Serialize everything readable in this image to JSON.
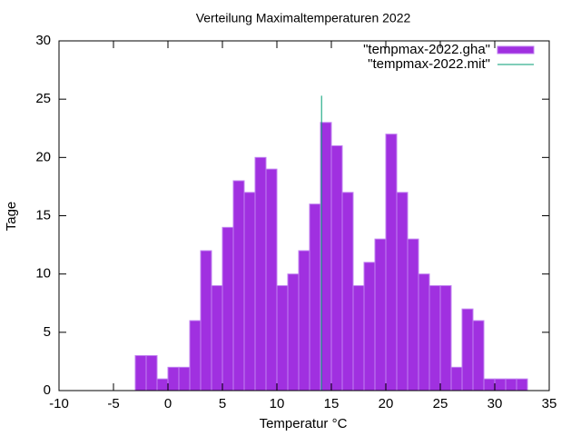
{
  "chart_data": {
    "type": "histogram",
    "title": "Verteilung Maximaltemperaturen 2022",
    "xlabel": "Temperatur °C",
    "ylabel": "Tage",
    "bins": [
      -3,
      -2,
      -1,
      0,
      1,
      2,
      3,
      4,
      5,
      6,
      7,
      8,
      9,
      10,
      11,
      12,
      13,
      14,
      15,
      16,
      17,
      18,
      19,
      20,
      21,
      22,
      23,
      24,
      25,
      26,
      27,
      28,
      29,
      30,
      31,
      32,
      33
    ],
    "series": [
      {
        "name": "\"tempmax-2022.gha\"",
        "color": "#a030e0",
        "values": [
          3,
          3,
          1,
          2,
          2,
          6,
          12,
          9,
          14,
          18,
          17,
          20,
          19,
          9,
          10,
          12,
          16,
          23,
          21,
          17,
          9,
          11,
          13,
          22,
          17,
          13,
          10,
          9,
          9,
          2,
          7,
          6,
          1,
          1,
          1,
          1
        ]
      },
      {
        "name": "\"tempmax-2022.mit\"",
        "color": "#009e73",
        "type": "line",
        "x": [
          14.1,
          14.1
        ],
        "values": [
          0,
          25.3
        ]
      }
    ],
    "xlim": [
      -10,
      35
    ],
    "xticks": [
      -10,
      -5,
      0,
      5,
      10,
      15,
      20,
      25,
      30,
      35
    ],
    "ylim": [
      0,
      30
    ],
    "yticks": [
      0,
      5,
      10,
      15,
      20,
      25,
      30
    ],
    "legend": "top-right"
  }
}
